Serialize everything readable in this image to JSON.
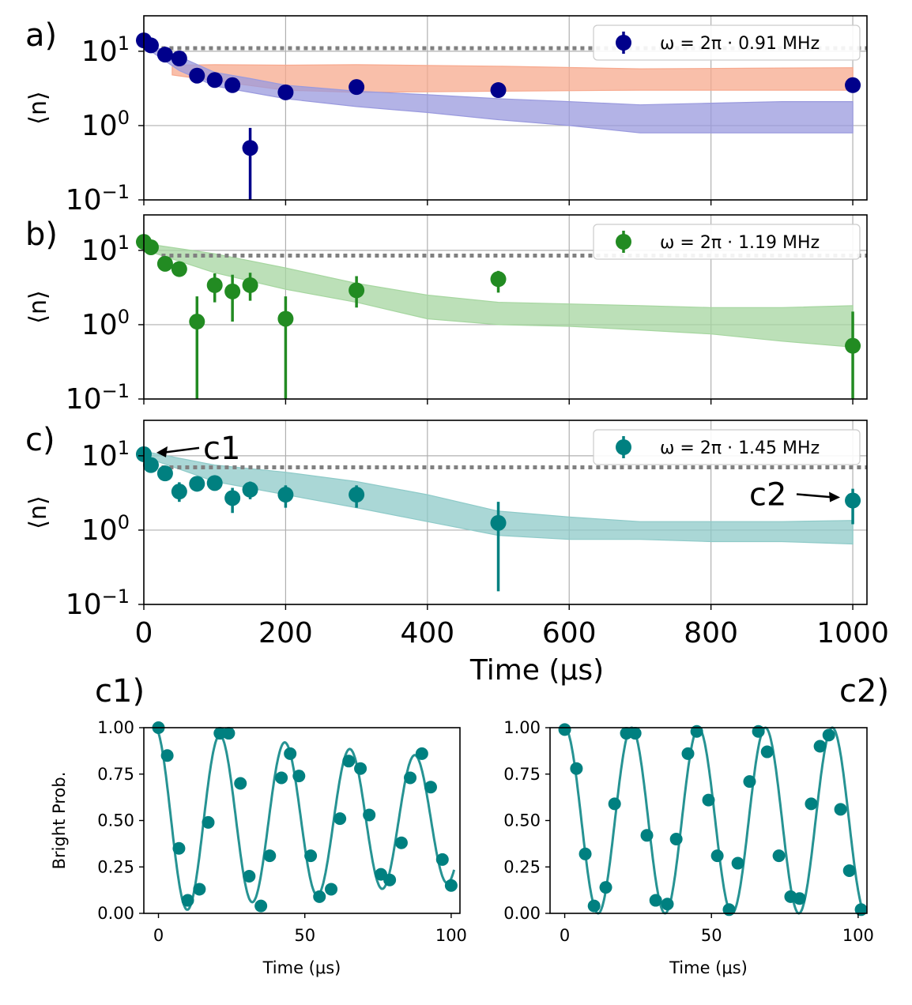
{
  "colors": {
    "blue": "#00008b",
    "green": "#228b22",
    "teal": "#008080",
    "blue_band": "#9a9ade",
    "orange_band": "#f7a98e",
    "green_band": "#a6d6a0",
    "teal_band": "#8ecac8",
    "dotted": "#808080",
    "grid": "#b0b0b0"
  },
  "chart_data": [
    {
      "id": "a",
      "panel_label": "a)",
      "type": "scatter",
      "color": "blue",
      "yscale": "log",
      "xlim": [
        0,
        1020
      ],
      "ylim": [
        0.1,
        30
      ],
      "ylabel": "⟨n⟩",
      "legend": "ω = 2π · 0.91 MHz",
      "legend_position": "top-right",
      "grid": true,
      "dotted_level": 11,
      "points": [
        {
          "x": 0,
          "y": 14,
          "err": null
        },
        {
          "x": 10,
          "y": 12,
          "err": null
        },
        {
          "x": 30,
          "y": 9,
          "err": null
        },
        {
          "x": 50,
          "y": 8,
          "err": null
        },
        {
          "x": 75,
          "y": 4.7,
          "err": null
        },
        {
          "x": 100,
          "y": 4.1,
          "err": null
        },
        {
          "x": 125,
          "y": 3.5,
          "err": null
        },
        {
          "x": 150,
          "y": 0.5,
          "err": [
            0.1,
            0.93
          ]
        },
        {
          "x": 200,
          "y": 2.8,
          "err": null
        },
        {
          "x": 300,
          "y": 3.3,
          "err": null
        },
        {
          "x": 500,
          "y": 3.0,
          "err": null
        },
        {
          "x": 1000,
          "y": 3.5,
          "err": null
        }
      ],
      "bands": [
        {
          "color": "orange_band",
          "x": [
            40,
            100,
            200,
            300,
            500,
            700,
            850,
            1000
          ],
          "lower": [
            4.8,
            4.0,
            3.0,
            2.8,
            2.9,
            3.0,
            3.0,
            3.0
          ],
          "upper": [
            6.5,
            6.6,
            6.5,
            6.6,
            6.3,
            5.8,
            5.9,
            6.0
          ]
        },
        {
          "color": "blue_band",
          "x": [
            10,
            50,
            100,
            150,
            200,
            300,
            400,
            500,
            600,
            700,
            800,
            900,
            1000
          ],
          "lower": [
            10,
            5.5,
            3.4,
            2.8,
            2.3,
            1.8,
            1.5,
            1.2,
            1.0,
            0.8,
            0.8,
            0.8,
            0.8
          ],
          "upper": [
            12,
            8.5,
            5.2,
            4.3,
            3.5,
            2.9,
            2.6,
            2.3,
            2.1,
            1.9,
            2.0,
            2.1,
            2.1
          ]
        }
      ]
    },
    {
      "id": "b",
      "panel_label": "b)",
      "type": "scatter",
      "color": "green",
      "yscale": "log",
      "xlim": [
        0,
        1020
      ],
      "ylim": [
        0.1,
        30
      ],
      "ylabel": "⟨n⟩",
      "legend": "ω = 2π · 1.19 MHz",
      "legend_position": "top-right",
      "grid": true,
      "dotted_level": 8.5,
      "points": [
        {
          "x": 0,
          "y": 13,
          "err": null
        },
        {
          "x": 10,
          "y": 11,
          "err": null
        },
        {
          "x": 30,
          "y": 6.6,
          "err": null
        },
        {
          "x": 50,
          "y": 5.6,
          "err": null
        },
        {
          "x": 75,
          "y": 1.1,
          "err": [
            0.1,
            2.4
          ]
        },
        {
          "x": 100,
          "y": 3.4,
          "err": [
            2.0,
            4.9
          ]
        },
        {
          "x": 125,
          "y": 2.8,
          "err": [
            1.1,
            4.7
          ]
        },
        {
          "x": 150,
          "y": 3.4,
          "err": [
            2.1,
            5.0
          ]
        },
        {
          "x": 200,
          "y": 1.2,
          "err": [
            0.1,
            2.4
          ]
        },
        {
          "x": 300,
          "y": 2.9,
          "err": [
            1.7,
            4.5
          ]
        },
        {
          "x": 500,
          "y": 4.1,
          "err": [
            2.7,
            5.3
          ]
        },
        {
          "x": 1000,
          "y": 0.52,
          "err": [
            0.1,
            1.5
          ]
        }
      ],
      "bands": [
        {
          "color": "green_band",
          "x": [
            10,
            100,
            200,
            300,
            400,
            500,
            600,
            700,
            800,
            900,
            1000
          ],
          "lower": [
            9.5,
            5.0,
            3.0,
            2.0,
            1.2,
            1.0,
            0.95,
            0.85,
            0.75,
            0.6,
            0.5
          ],
          "upper": [
            12,
            9.0,
            5.8,
            3.6,
            2.5,
            2.0,
            1.9,
            1.8,
            1.7,
            1.7,
            1.8
          ]
        }
      ]
    },
    {
      "id": "c",
      "panel_label": "c)",
      "type": "scatter",
      "color": "teal",
      "yscale": "log",
      "xlim": [
        0,
        1020
      ],
      "ylim": [
        0.1,
        30
      ],
      "ylabel": "⟨n⟩",
      "xlabel": "Time (μs)",
      "xticks": [
        "0",
        "200",
        "400",
        "600",
        "800",
        "1000"
      ],
      "xtick_values": [
        0,
        200,
        400,
        600,
        800,
        1000
      ],
      "yticks": [
        "10",
        "10",
        "10"
      ],
      "ytick_exponents": [
        "1",
        "0",
        "−1"
      ],
      "ytick_values": [
        10,
        1,
        0.1
      ],
      "legend": "ω = 2π · 1.45 MHz",
      "legend_position": "top-right",
      "grid": true,
      "dotted_level": 7,
      "points": [
        {
          "x": 0,
          "y": 10.5,
          "err": null
        },
        {
          "x": 10,
          "y": 7.5,
          "err": null
        },
        {
          "x": 30,
          "y": 5.8,
          "err": null
        },
        {
          "x": 50,
          "y": 3.3,
          "err": [
            2.4,
            4.4
          ]
        },
        {
          "x": 75,
          "y": 4.2,
          "err": null
        },
        {
          "x": 100,
          "y": 4.3,
          "err": null
        },
        {
          "x": 125,
          "y": 2.7,
          "err": [
            1.7,
            3.7
          ]
        },
        {
          "x": 150,
          "y": 3.5,
          "err": [
            2.6,
            4.5
          ]
        },
        {
          "x": 200,
          "y": 3.0,
          "err": [
            2.0,
            4.0
          ]
        },
        {
          "x": 300,
          "y": 3.0,
          "err": [
            2.0,
            4.0
          ]
        },
        {
          "x": 500,
          "y": 1.25,
          "err": [
            0.15,
            2.4
          ]
        },
        {
          "x": 1000,
          "y": 2.5,
          "err": [
            1.2,
            3.6
          ]
        }
      ],
      "bands": [
        {
          "color": "teal_band",
          "x": [
            10,
            100,
            200,
            300,
            400,
            500,
            600,
            700,
            800,
            900,
            1000
          ],
          "lower": [
            9.0,
            4.5,
            3.0,
            2.0,
            1.3,
            0.85,
            0.75,
            0.75,
            0.7,
            0.7,
            0.65
          ],
          "upper": [
            11,
            7.5,
            6.0,
            4.5,
            3.0,
            1.8,
            1.5,
            1.3,
            1.3,
            1.3,
            1.35
          ]
        }
      ],
      "annotations": [
        {
          "text": "c1",
          "target_x": 0,
          "target_y": 10.5
        },
        {
          "text": "c2",
          "target_x": 1000,
          "target_y": 2.5
        }
      ]
    },
    {
      "id": "c1",
      "panel_label": "c1)",
      "type": "scatter",
      "color": "teal",
      "xlim": [
        -5,
        103
      ],
      "ylim": [
        0,
        1
      ],
      "ylabel": "Bright Prob.",
      "xlabel": "Time (μs)",
      "xticks": [
        "0",
        "50",
        "100"
      ],
      "xtick_values": [
        0,
        50,
        100
      ],
      "yticks": [
        "0.00",
        "0.25",
        "0.50",
        "0.75",
        "1.00"
      ],
      "ytick_values": [
        0,
        0.25,
        0.5,
        0.75,
        1.0
      ],
      "grid": false,
      "fit": {
        "period": 22.2,
        "phase_shift": 1.2,
        "decay": 0.004
      },
      "points": [
        {
          "x": 0,
          "y": 1.0
        },
        {
          "x": 3,
          "y": 0.85
        },
        {
          "x": 7,
          "y": 0.35
        },
        {
          "x": 10,
          "y": 0.07
        },
        {
          "x": 14,
          "y": 0.13
        },
        {
          "x": 17,
          "y": 0.49
        },
        {
          "x": 21,
          "y": 0.97
        },
        {
          "x": 24,
          "y": 0.97
        },
        {
          "x": 28,
          "y": 0.7
        },
        {
          "x": 31,
          "y": 0.2
        },
        {
          "x": 35,
          "y": 0.04
        },
        {
          "x": 38,
          "y": 0.31
        },
        {
          "x": 42,
          "y": 0.73
        },
        {
          "x": 45,
          "y": 0.86
        },
        {
          "x": 48,
          "y": 0.74
        },
        {
          "x": 52,
          "y": 0.31
        },
        {
          "x": 55,
          "y": 0.09
        },
        {
          "x": 59,
          "y": 0.13
        },
        {
          "x": 62,
          "y": 0.51
        },
        {
          "x": 65,
          "y": 0.82
        },
        {
          "x": 69,
          "y": 0.78
        },
        {
          "x": 72,
          "y": 0.53
        },
        {
          "x": 76,
          "y": 0.21
        },
        {
          "x": 79,
          "y": 0.18
        },
        {
          "x": 83,
          "y": 0.38
        },
        {
          "x": 86,
          "y": 0.73
        },
        {
          "x": 90,
          "y": 0.86
        },
        {
          "x": 93,
          "y": 0.68
        },
        {
          "x": 97,
          "y": 0.29
        },
        {
          "x": 100,
          "y": 0.15
        }
      ]
    },
    {
      "id": "c2",
      "panel_label": "c2)",
      "type": "scatter",
      "color": "teal",
      "xlim": [
        -5,
        103
      ],
      "ylim": [
        0,
        1
      ],
      "ylabel": "",
      "xlabel": "Time (μs)",
      "xticks": [
        "0",
        "50",
        "100"
      ],
      "xtick_values": [
        0,
        50,
        100
      ],
      "yticks": [
        "0.00",
        "0.25",
        "0.50",
        "0.75",
        "1.00"
      ],
      "ytick_values": [
        0,
        0.25,
        0.5,
        0.75,
        1.0
      ],
      "grid": false,
      "fit": {
        "period": 22.8,
        "phase_shift": 0,
        "decay": 0.0
      },
      "points": [
        {
          "x": 0,
          "y": 0.99
        },
        {
          "x": 4,
          "y": 0.78
        },
        {
          "x": 7,
          "y": 0.32
        },
        {
          "x": 10,
          "y": 0.04
        },
        {
          "x": 14,
          "y": 0.14
        },
        {
          "x": 17,
          "y": 0.59
        },
        {
          "x": 21,
          "y": 0.97
        },
        {
          "x": 24,
          "y": 0.97
        },
        {
          "x": 28,
          "y": 0.42
        },
        {
          "x": 31,
          "y": 0.07
        },
        {
          "x": 35,
          "y": 0.05
        },
        {
          "x": 38,
          "y": 0.4
        },
        {
          "x": 42,
          "y": 0.86
        },
        {
          "x": 45,
          "y": 0.98
        },
        {
          "x": 49,
          "y": 0.61
        },
        {
          "x": 52,
          "y": 0.31
        },
        {
          "x": 56,
          "y": 0.02
        },
        {
          "x": 59,
          "y": 0.27
        },
        {
          "x": 63,
          "y": 0.71
        },
        {
          "x": 66,
          "y": 0.98
        },
        {
          "x": 69,
          "y": 0.87
        },
        {
          "x": 73,
          "y": 0.31
        },
        {
          "x": 77,
          "y": 0.09
        },
        {
          "x": 80,
          "y": 0.08
        },
        {
          "x": 84,
          "y": 0.59
        },
        {
          "x": 87,
          "y": 0.9
        },
        {
          "x": 90,
          "y": 0.96
        },
        {
          "x": 94,
          "y": 0.56
        },
        {
          "x": 97,
          "y": 0.23
        },
        {
          "x": 101,
          "y": 0.02
        }
      ]
    }
  ]
}
